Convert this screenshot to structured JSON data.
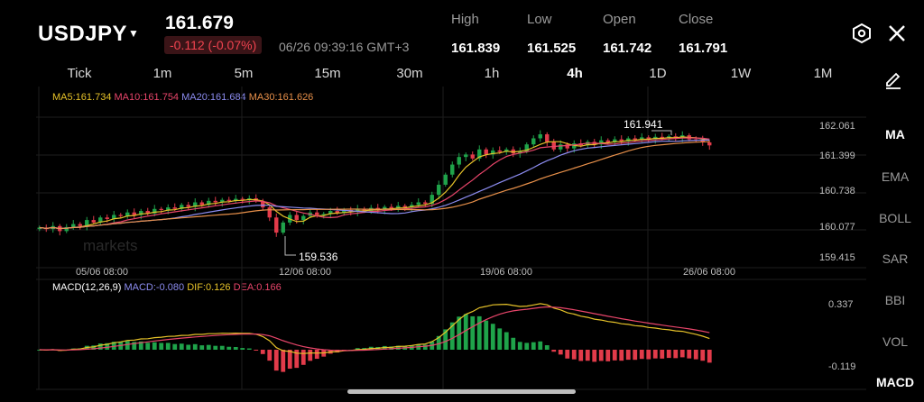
{
  "header": {
    "symbol": "USDJPY",
    "price": "161.679",
    "change": "-0.112 (-0.07%)",
    "time": "06/26 09:39:16 GMT+3",
    "stats": [
      {
        "label": "High",
        "value": "161.839"
      },
      {
        "label": "Low",
        "value": "161.525"
      },
      {
        "label": "Open",
        "value": "161.742"
      },
      {
        "label": "Close",
        "value": "161.791"
      }
    ]
  },
  "timeframes": [
    "Tick",
    "1m",
    "5m",
    "15m",
    "30m",
    "1h",
    "4h",
    "1D",
    "1W",
    "1M"
  ],
  "active_timeframe": "4h",
  "indicators": [
    "MA",
    "EMA",
    "BOLL",
    "SAR",
    "BBI",
    "VOL",
    "MACD"
  ],
  "main_legend": {
    "ma5": "MA5:161.734",
    "ma10": "MA10:161.754",
    "ma20": "MA20:161.684",
    "ma30": "MA30:161.626"
  },
  "macd_legend": {
    "title": "MACD(12,26,9)",
    "macd": "MACD:-0.080",
    "dif": "DIF:0.126",
    "dea": "DEA:0.166"
  },
  "price_axis": [
    "162.061",
    "161.399",
    "160.738",
    "160.077",
    "159.415"
  ],
  "macd_axis": [
    "0.337",
    "-0.119"
  ],
  "date_labels": [
    "05/06 08:00",
    "12/06 08:00",
    "19/06 08:00",
    "26/06 08:00"
  ],
  "annotations": {
    "high": "161.941",
    "low": "159.536"
  },
  "watermark": "markets",
  "colors": {
    "up": "#1fa34a",
    "down": "#e23b4a",
    "ma5": "#e6c229",
    "ma10": "#e8456a",
    "ma20": "#8c8cf0",
    "ma30": "#e8904a"
  },
  "chart_data": {
    "type": "candlestick",
    "ylim": [
      159.415,
      162.061
    ],
    "close_series": [
      160.05,
      160.02,
      160.08,
      159.98,
      160.06,
      160.12,
      160.08,
      160.2,
      160.15,
      160.25,
      160.22,
      160.3,
      160.28,
      160.35,
      160.3,
      160.38,
      160.33,
      160.42,
      160.4,
      160.45,
      160.42,
      160.5,
      160.46,
      160.55,
      160.5,
      160.58,
      160.55,
      160.6,
      160.58,
      160.62,
      160.6,
      160.63,
      160.58,
      160.45,
      160.25,
      159.95,
      160.15,
      160.3,
      160.2,
      160.28,
      160.35,
      160.3,
      160.32,
      160.38,
      160.34,
      160.4,
      160.36,
      160.42,
      160.38,
      160.44,
      160.4,
      160.46,
      160.42,
      160.48,
      160.45,
      160.5,
      160.55,
      160.52,
      160.7,
      160.9,
      161.1,
      161.3,
      161.45,
      161.5,
      161.42,
      161.6,
      161.5,
      161.58,
      161.55,
      161.6,
      161.52,
      161.56,
      161.7,
      161.82,
      161.9,
      161.75,
      161.6,
      161.7,
      161.62,
      161.72,
      161.68,
      161.75,
      161.7,
      161.78,
      161.74,
      161.8,
      161.76,
      161.82,
      161.79,
      161.84,
      161.8,
      161.85,
      161.82,
      161.86,
      161.83,
      161.88,
      161.8,
      161.79,
      161.74,
      161.68
    ]
  }
}
